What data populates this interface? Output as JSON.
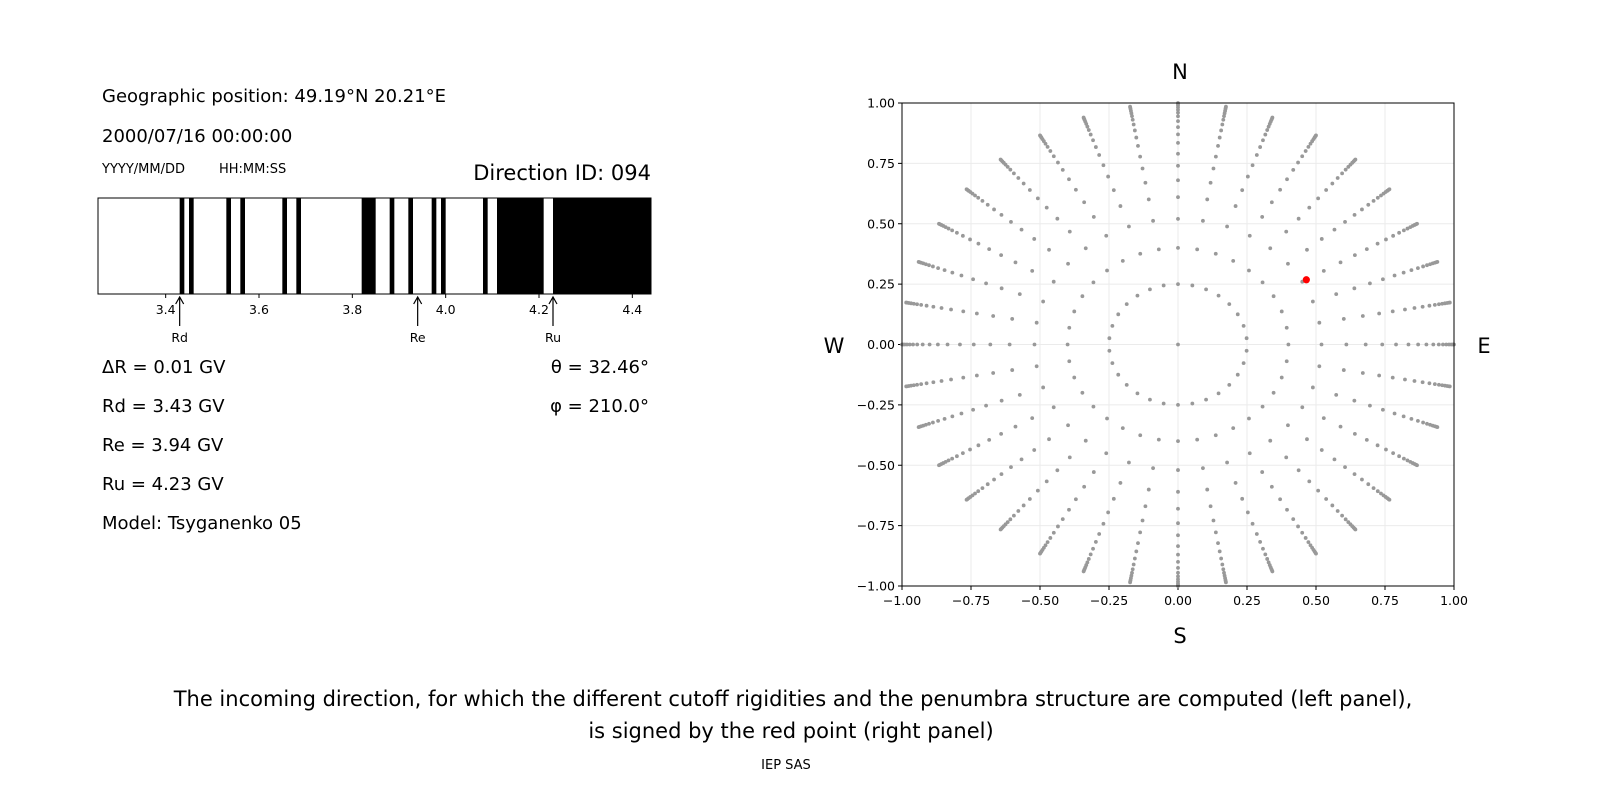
{
  "left_panel": {
    "geo_position": "Geographic position: 49.19°N 20.21°E",
    "datetime": "2000/07/16 00:00:00",
    "date_format": "YYYY/MM/DD",
    "time_format": "HH:MM:SS",
    "direction_id": "Direction ID: 094",
    "delta_r": "ΔR = 0.01 GV",
    "rd": "Rd = 3.43 GV",
    "re": "Re = 3.94 GV",
    "ru": "Ru = 4.23 GV",
    "model": "Model: Tsyganenko 05",
    "theta": "θ = 32.46°",
    "phi": "φ = 210.0°"
  },
  "chart_data": [
    {
      "type": "penumbra-bar",
      "xlim": [
        3.255,
        4.44
      ],
      "xticks": [
        3.4,
        3.6,
        3.8,
        4.0,
        4.2,
        4.4
      ],
      "xtick_labels": [
        "3.4",
        "3.6",
        "3.8",
        "4.0",
        "4.2",
        "4.4"
      ],
      "black_bands_GV": [
        [
          3.43,
          3.44
        ],
        [
          3.45,
          3.46
        ],
        [
          3.53,
          3.54
        ],
        [
          3.56,
          3.57
        ],
        [
          3.65,
          3.66
        ],
        [
          3.68,
          3.69
        ],
        [
          3.82,
          3.85
        ],
        [
          3.88,
          3.89
        ],
        [
          3.92,
          3.93
        ],
        [
          3.97,
          3.98
        ],
        [
          3.99,
          4.0
        ],
        [
          4.08,
          4.09
        ],
        [
          4.11,
          4.21
        ],
        [
          4.23,
          4.44
        ]
      ],
      "markers": [
        {
          "label": "Rd",
          "value": 3.43
        },
        {
          "label": "Re",
          "value": 3.94
        },
        {
          "label": "Ru",
          "value": 4.23
        }
      ],
      "colors": {
        "allowed": "#ffffff",
        "forbidden": "#000000"
      }
    },
    {
      "type": "scatter",
      "xlim": [
        -1,
        1
      ],
      "ylim": [
        -1,
        1
      ],
      "xticks": [
        "−1.00",
        "−0.75",
        "−0.50",
        "−0.25",
        "0.00",
        "0.25",
        "0.50",
        "0.75",
        "1.00"
      ],
      "yticks": [
        "−1.00",
        "−0.75",
        "−0.50",
        "−0.25",
        "0.00",
        "0.25",
        "0.50",
        "0.75",
        "1.00"
      ],
      "grid": true,
      "compass": {
        "north": "N",
        "south": "S",
        "west": "W",
        "east": "E"
      },
      "directions_grid": {
        "center": [
          0,
          0
        ],
        "inner_ring_radius": 0.25,
        "inner_ring_points": 30,
        "spoke_azimuth_step_deg": 10,
        "spoke_radii": [
          0.4,
          0.52,
          0.61,
          0.68,
          0.74,
          0.79,
          0.835,
          0.87,
          0.9,
          0.925,
          0.945,
          0.96,
          0.972,
          0.982,
          0.99,
          0.996,
          1.0
        ]
      },
      "highlight_point": {
        "x": 0.465,
        "y": 0.268,
        "color": "#ff0000"
      },
      "point_color": "#999999"
    }
  ],
  "caption": {
    "line1": "The incoming direction, for which the different cutoff rigidities and the penumbra structure are computed (left panel),",
    "line2": "is signed by the red point (right panel)"
  },
  "footer": "IEP SAS"
}
